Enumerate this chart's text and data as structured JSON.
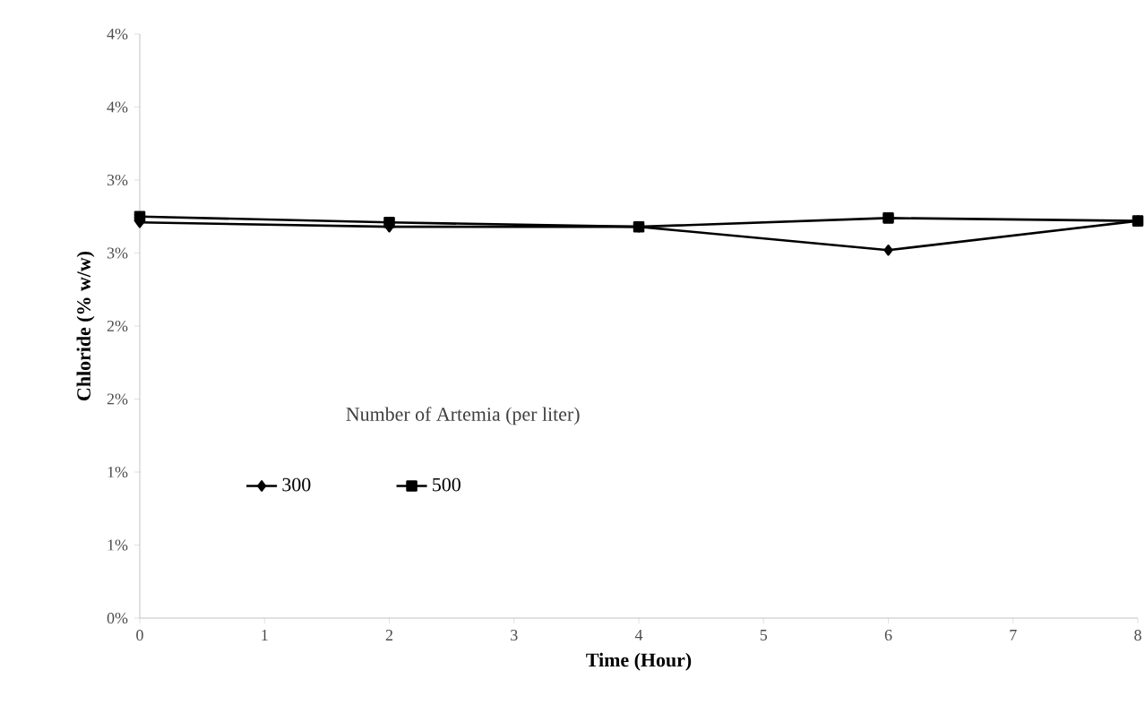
{
  "chart_data": {
    "type": "line",
    "xlabel": "Time (Hour)",
    "ylabel": "Chloride (% w/w)",
    "legend_title": "Number of Artemia (per liter)",
    "x": [
      0,
      2,
      4,
      6,
      8
    ],
    "series": [
      {
        "name": "300",
        "color": "#000000",
        "marker": "diamond",
        "values": [
          2.71,
          2.68,
          2.68,
          2.52,
          2.72
        ]
      },
      {
        "name": "500",
        "color": "#000000",
        "marker": "square",
        "values": [
          2.75,
          2.71,
          2.68,
          2.74,
          2.72
        ]
      }
    ],
    "xlim": [
      0,
      8
    ],
    "xticks": [
      0,
      1,
      2,
      3,
      4,
      5,
      6,
      7,
      8
    ],
    "ylim": [
      0,
      4
    ],
    "yticks": [
      {
        "value": 0,
        "label": "0%"
      },
      {
        "value": 0.5,
        "label": "1%"
      },
      {
        "value": 1,
        "label": "1%"
      },
      {
        "value": 1.5,
        "label": "2%"
      },
      {
        "value": 2,
        "label": "2%"
      },
      {
        "value": 2.5,
        "label": "3%"
      },
      {
        "value": 3,
        "label": "3%"
      },
      {
        "value": 3.5,
        "label": "4%"
      },
      {
        "value": 4,
        "label": "4%"
      }
    ],
    "grid": false,
    "legend": "left",
    "line_style": "solid"
  }
}
